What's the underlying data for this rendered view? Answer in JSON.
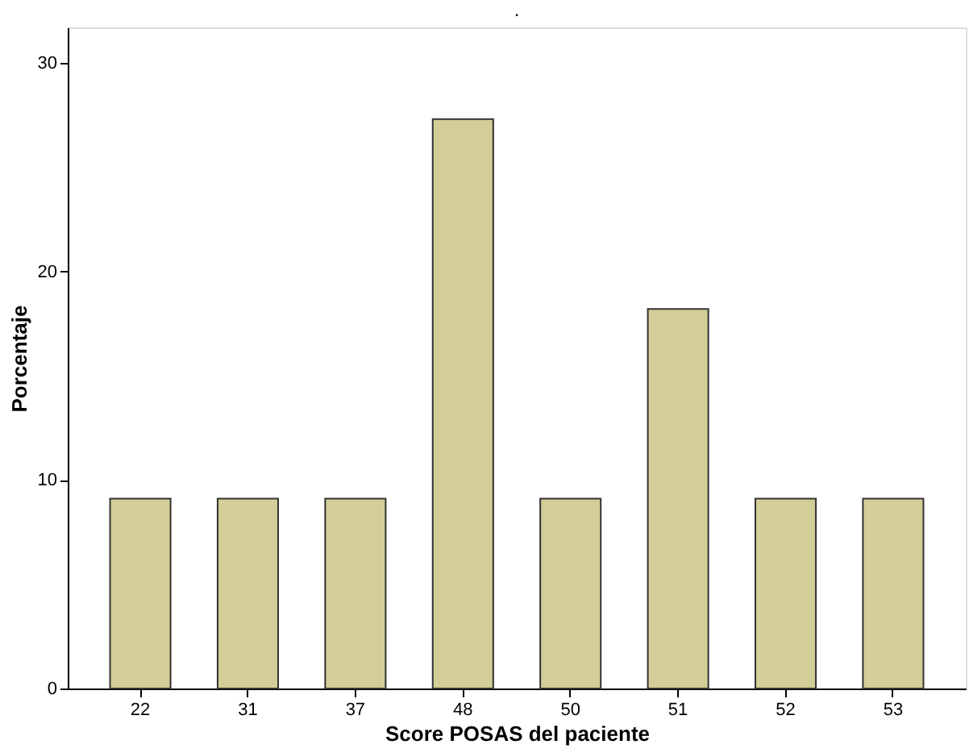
{
  "chart_data": {
    "type": "bar",
    "title": ".",
    "categories": [
      "22",
      "31",
      "37",
      "48",
      "50",
      "51",
      "52",
      "53"
    ],
    "values": [
      9.1,
      9.1,
      9.1,
      27.3,
      9.1,
      18.2,
      9.1,
      9.1
    ],
    "color": "#d3ce97",
    "xlabel": "Score POSAS del paciente",
    "ylabel": "Porcentaje",
    "ylim": [
      0,
      31.7
    ],
    "yticks": [
      0,
      10,
      20,
      30
    ],
    "grid": false
  }
}
